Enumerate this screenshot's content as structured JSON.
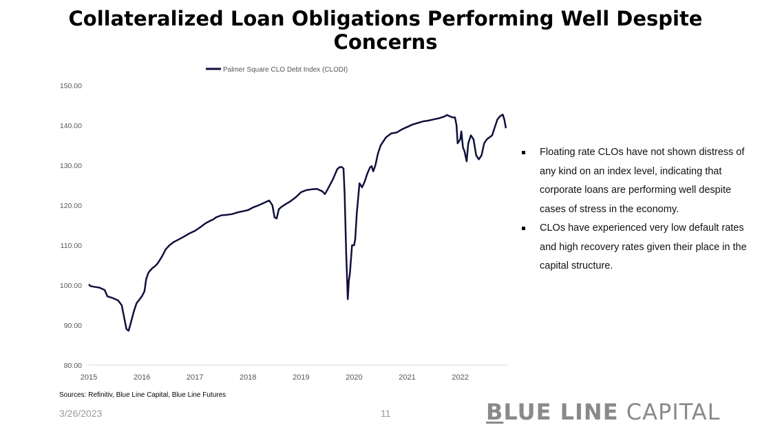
{
  "slide": {
    "title": "Collateralized Loan Obligations Performing Well Despite Concerns",
    "sources": "Sources: Refinitiv, Blue Line Capital, Blue Line Futures",
    "date": "3/26/2023",
    "page_number": "11",
    "logo": {
      "first_letter": "B",
      "bold_rest": "LUE LINE",
      "light": " CAPITAL"
    }
  },
  "bullets": [
    "Floating rate CLOs have not shown distress of any kind on an index level, indicating that corporate loans are performing well despite cases of stress in the economy.",
    "CLOs have experienced very low default rates and high recovery rates given their place in the capital structure."
  ],
  "colors": {
    "line": "#0f0f3d",
    "axis": "#d9d9d9",
    "text": "#555555"
  },
  "chart_data": {
    "type": "line",
    "title": "",
    "xlabel": "",
    "ylabel": "",
    "ylim": [
      80,
      150
    ],
    "yticks": [
      "80.00",
      "90.00",
      "100.00",
      "110.00",
      "120.00",
      "130.00",
      "140.00",
      "150.00"
    ],
    "xlim": [
      2015,
      2022.9
    ],
    "xticks": [
      "2015",
      "2016",
      "2017",
      "2018",
      "2019",
      "2020",
      "2021",
      "2022"
    ],
    "grid": false,
    "legend_position": "top",
    "series": [
      {
        "name": "Palmer Square CLO Debt Index (CLODI)",
        "x": [
          2015.0,
          2015.03,
          2015.1,
          2015.2,
          2015.3,
          2015.35,
          2015.45,
          2015.55,
          2015.62,
          2015.68,
          2015.71,
          2015.75,
          2015.79,
          2015.85,
          2015.9,
          2016.0,
          2016.05,
          2016.08,
          2016.12,
          2016.15,
          2016.2,
          2016.25,
          2016.3,
          2016.38,
          2016.45,
          2016.52,
          2016.6,
          2016.7,
          2016.8,
          2016.9,
          2017.0,
          2017.1,
          2017.2,
          2017.3,
          2017.35,
          2017.4,
          2017.5,
          2017.6,
          2017.7,
          2017.8,
          2017.9,
          2018.0,
          2018.1,
          2018.2,
          2018.3,
          2018.4,
          2018.46,
          2018.5,
          2018.54,
          2018.58,
          2018.62,
          2018.7,
          2018.8,
          2018.9,
          2019.0,
          2019.1,
          2019.2,
          2019.3,
          2019.35,
          2019.4,
          2019.45,
          2019.5,
          2019.6,
          2019.68,
          2019.72,
          2019.76,
          2019.8,
          2019.82,
          2019.85,
          2019.88,
          2019.9,
          2019.92,
          2019.96,
          2020.0,
          2020.02,
          2020.05,
          2020.1,
          2020.15,
          2020.2,
          2020.25,
          2020.3,
          2020.33,
          2020.36,
          2020.4,
          2020.45,
          2020.5,
          2020.6,
          2020.7,
          2020.8,
          2020.9,
          2021.0,
          2021.1,
          2021.2,
          2021.3,
          2021.4,
          2021.5,
          2021.6,
          2021.65,
          2021.7,
          2021.75,
          2021.8,
          2021.85,
          2021.9,
          2021.93,
          2021.95,
          2022.0,
          2022.02,
          2022.05,
          2022.08,
          2022.12,
          2022.15,
          2022.2,
          2022.25,
          2022.3,
          2022.35,
          2022.4,
          2022.45,
          2022.5,
          2022.55,
          2022.6,
          2022.65,
          2022.7,
          2022.75,
          2022.8,
          2022.83,
          2022.86
        ],
        "values": [
          100.2,
          99.8,
          99.6,
          99.4,
          98.8,
          97.2,
          96.8,
          96.2,
          95.0,
          91.0,
          89.0,
          88.6,
          90.5,
          93.5,
          95.5,
          97.2,
          98.5,
          101.5,
          103.0,
          103.6,
          104.3,
          104.8,
          105.5,
          107.2,
          109.0,
          110.0,
          110.8,
          111.5,
          112.2,
          113.0,
          113.6,
          114.5,
          115.5,
          116.2,
          116.5,
          117.0,
          117.5,
          117.6,
          117.8,
          118.2,
          118.5,
          118.8,
          119.5,
          120.0,
          120.6,
          121.2,
          120.0,
          117.0,
          116.7,
          119.0,
          119.5,
          120.2,
          121.0,
          122.0,
          123.3,
          123.8,
          124.0,
          124.1,
          123.8,
          123.5,
          122.8,
          124.0,
          126.5,
          129.0,
          129.5,
          129.6,
          129.2,
          123.0,
          108.0,
          96.5,
          101.0,
          103.0,
          110.0,
          110.0,
          111.5,
          118.0,
          125.5,
          124.5,
          126.0,
          128.0,
          129.5,
          129.8,
          128.5,
          130.0,
          133.0,
          135.0,
          137.0,
          138.0,
          138.2,
          139.0,
          139.6,
          140.2,
          140.6,
          141.0,
          141.2,
          141.5,
          141.8,
          142.0,
          142.2,
          142.6,
          142.3,
          142.0,
          142.0,
          140.0,
          135.5,
          136.5,
          138.5,
          134.5,
          133.5,
          131.0,
          135.5,
          137.5,
          136.5,
          132.5,
          131.5,
          132.5,
          135.5,
          136.5,
          137.0,
          137.5,
          139.5,
          141.5,
          142.3,
          142.7,
          141.5,
          139.3
        ]
      }
    ]
  }
}
